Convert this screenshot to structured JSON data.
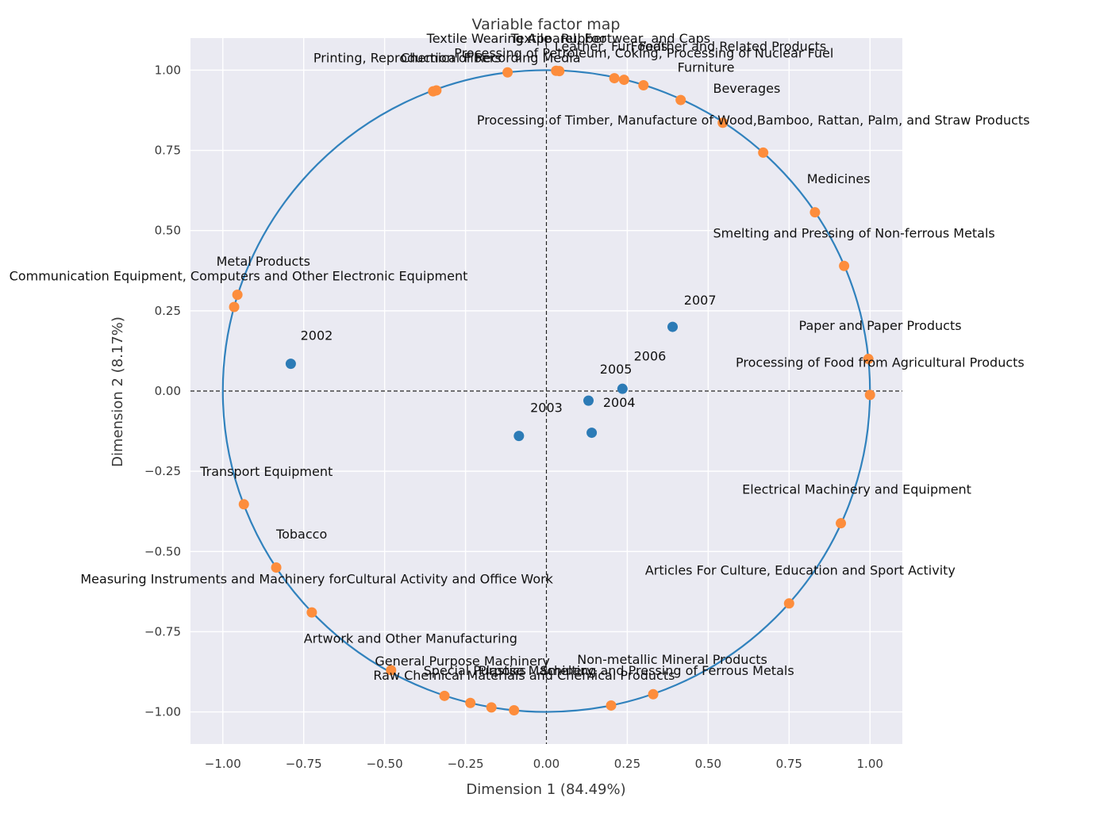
{
  "chart_data": {
    "type": "scatter",
    "title": "Variable factor map",
    "xlabel": "Dimension 1 (84.49%)",
    "ylabel": "Dimension 2 (8.17%)",
    "xlim": [
      -1.1,
      1.1
    ],
    "ylim": [
      -1.1,
      1.1
    ],
    "xticks": [
      "−1.00",
      "−0.75",
      "−0.50",
      "−0.25",
      "0.00",
      "0.25",
      "0.50",
      "0.75",
      "1.00"
    ],
    "yticks": [
      "−1.00",
      "−0.75",
      "−0.50",
      "−0.25",
      "0.00",
      "0.25",
      "0.50",
      "0.75",
      "1.00"
    ],
    "grid": true,
    "style": {
      "background": "#EAEAF2",
      "grid": "#FFFFFF",
      "circle": "#3182BD",
      "year_points": "#2C7BB6",
      "variable_points": "#FD8D3C",
      "zero_lines": "#222222"
    },
    "unit_circle": true,
    "series": [
      {
        "points": [
          {
            "label": "2002",
            "x": -0.79,
            "y": 0.085
          },
          {
            "label": "2003",
            "x": -0.085,
            "y": -0.14
          },
          {
            "label": "2004",
            "x": 0.14,
            "y": -0.13
          },
          {
            "label": "2005",
            "x": 0.13,
            "y": -0.03
          },
          {
            "label": "2006",
            "x": 0.235,
            "y": 0.007
          },
          {
            "label": "2007",
            "x": 0.39,
            "y": 0.2
          }
        ]
      },
      {
        "points": [
          {
            "label": "Textile Wearing Apparel, Footwear, and Caps",
            "x": 0.03,
            "y": 0.998
          },
          {
            "label": "Textile",
            "x": 0.04,
            "y": 0.997
          },
          {
            "label": "Rubber",
            "x": 0.21,
            "y": 0.975
          },
          {
            "label": "Leather, Fur, Feather and Related Products",
            "x": 0.24,
            "y": 0.97
          },
          {
            "label": "Foods",
            "x": 0.3,
            "y": 0.953
          },
          {
            "label": "Printing, Reproduction of Recording Media",
            "x": -0.35,
            "y": 0.934
          },
          {
            "label": "Chemical Fibers",
            "x": -0.34,
            "y": 0.937
          },
          {
            "label": "Processing of Petroleum, Coking, Processing of Nuclear Fuel",
            "x": -0.12,
            "y": 0.993
          },
          {
            "label": "Furniture",
            "x": 0.415,
            "y": 0.907
          },
          {
            "label": "Beverages",
            "x": 0.545,
            "y": 0.836
          },
          {
            "label": "Processing of Timber, Manufacture of Wood,Bamboo, Rattan, Palm, and Straw Products",
            "x": 0.67,
            "y": 0.743
          },
          {
            "label": "Medicines",
            "x": 0.83,
            "y": 0.557
          },
          {
            "label": "Smelting and Pressing of Non-ferrous Metals",
            "x": 0.92,
            "y": 0.39
          },
          {
            "label": "Metal Products",
            "x": -0.955,
            "y": 0.3
          },
          {
            "label": "Communication Equipment, Computers and Other Electronic Equipment",
            "x": -0.965,
            "y": 0.262
          },
          {
            "label": "Paper and Paper Products",
            "x": 0.995,
            "y": 0.1
          },
          {
            "label": "Processing of Food from Agricultural Products",
            "x": 1.0,
            "y": -0.012
          },
          {
            "label": "Transport Equipment",
            "x": -0.935,
            "y": -0.353
          },
          {
            "label": "Electrical Machinery and Equipment",
            "x": 0.91,
            "y": -0.412
          },
          {
            "label": "Tobacco",
            "x": -0.835,
            "y": -0.55
          },
          {
            "label": "Measuring Instruments and Machinery forCultural Activity and Office Work",
            "x": -0.725,
            "y": -0.69
          },
          {
            "label": "Articles For Culture, Education and Sport Activity",
            "x": 0.75,
            "y": -0.662
          },
          {
            "label": "Artwork and Other Manufacturing",
            "x": -0.48,
            "y": -0.87
          },
          {
            "label": "Non-metallic Mineral Products",
            "x": 0.33,
            "y": -0.945
          },
          {
            "label": "Smelting and Pressing of Ferrous Metals",
            "x": 0.2,
            "y": -0.98
          },
          {
            "label": "General Purpose Machinery",
            "x": -0.315,
            "y": -0.95
          },
          {
            "label": "Special Purpose Machinery",
            "x": -0.235,
            "y": -0.972
          },
          {
            "label": "Raw Chemical Materials and Chemical Products",
            "x": -0.17,
            "y": -0.986
          },
          {
            "label": "Plastics",
            "x": -0.1,
            "y": -0.995
          }
        ]
      }
    ],
    "annotations": [
      {
        "text": "2002",
        "x": -0.76,
        "y": 0.16
      },
      {
        "text": "2003",
        "x": -0.05,
        "y": -0.065
      },
      {
        "text": "2004",
        "x": 0.175,
        "y": -0.05
      },
      {
        "text": "2005",
        "x": 0.165,
        "y": 0.055
      },
      {
        "text": "2006",
        "x": 0.27,
        "y": 0.095
      },
      {
        "text": "2007",
        "x": 0.425,
        "y": 0.27
      },
      {
        "text": "Textile Wearing Apparel, Footwear, and Caps",
        "x": -0.37,
        "y": 1.085
      },
      {
        "text": "Textile",
        "x": -0.11,
        "y": 1.085
      },
      {
        "text": "Rubber",
        "x": 0.045,
        "y": 1.085
      },
      {
        "text": "Leather, Fur, Feather and Related Products",
        "x": 0.025,
        "y": 1.06
      },
      {
        "text": "Foods",
        "x": 0.26,
        "y": 1.06
      },
      {
        "text": "Printing, Reproduction of Recording Media",
        "x": -0.72,
        "y": 1.025
      },
      {
        "text": "Chemical Fibers",
        "x": -0.45,
        "y": 1.025
      },
      {
        "text": "Processing of Petroleum, Coking, Processing of Nuclear Fuel",
        "x": -0.285,
        "y": 1.04
      },
      {
        "text": "Furniture",
        "x": 0.405,
        "y": 0.995
      },
      {
        "text": "Beverages",
        "x": 0.515,
        "y": 0.93
      },
      {
        "text": "Processing of Timber, Manufacture of Wood,Bamboo, Rattan, Palm, and Straw Products",
        "x": -0.215,
        "y": 0.83
      },
      {
        "text": "Medicines",
        "x": 0.805,
        "y": 0.648
      },
      {
        "text": "Smelting and Pressing of Non-ferrous Metals",
        "x": 0.515,
        "y": 0.478
      },
      {
        "text": "Metal Products",
        "x": -1.02,
        "y": 0.39
      },
      {
        "text": "Communication Equipment, Computers and Other Electronic Equipment",
        "x": -1.66,
        "y": 0.345
      },
      {
        "text": "Paper and Paper Products",
        "x": 0.78,
        "y": 0.19
      },
      {
        "text": "Processing of Food from Agricultural Products",
        "x": 0.585,
        "y": 0.075
      },
      {
        "text": "Transport Equipment",
        "x": -1.07,
        "y": -0.265
      },
      {
        "text": "Electrical Machinery and Equipment",
        "x": 0.605,
        "y": -0.32
      },
      {
        "text": "Tobacco",
        "x": -0.835,
        "y": -0.46
      },
      {
        "text": "Measuring Instruments and Machinery forCultural Activity and Office Work",
        "x": -1.44,
        "y": -0.6
      },
      {
        "text": "Articles For Culture, Education and Sport Activity",
        "x": 0.305,
        "y": -0.572
      },
      {
        "text": "Artwork and Other Manufacturing",
        "x": -0.75,
        "y": -0.785
      },
      {
        "text": "General Purpose Machinery",
        "x": -0.53,
        "y": -0.855
      },
      {
        "text": "Non-metallic Mineral Products",
        "x": 0.095,
        "y": -0.85
      },
      {
        "text": "Special Purpose Machinery",
        "x": -0.38,
        "y": -0.885
      },
      {
        "text": "Plastics",
        "x": -0.21,
        "y": -0.885
      },
      {
        "text": "Smelting and Pressing of Ferrous Metals",
        "x": -0.02,
        "y": -0.885
      },
      {
        "text": "Raw Chemical Materials and Chemical Products",
        "x": -0.535,
        "y": -0.9
      }
    ]
  }
}
